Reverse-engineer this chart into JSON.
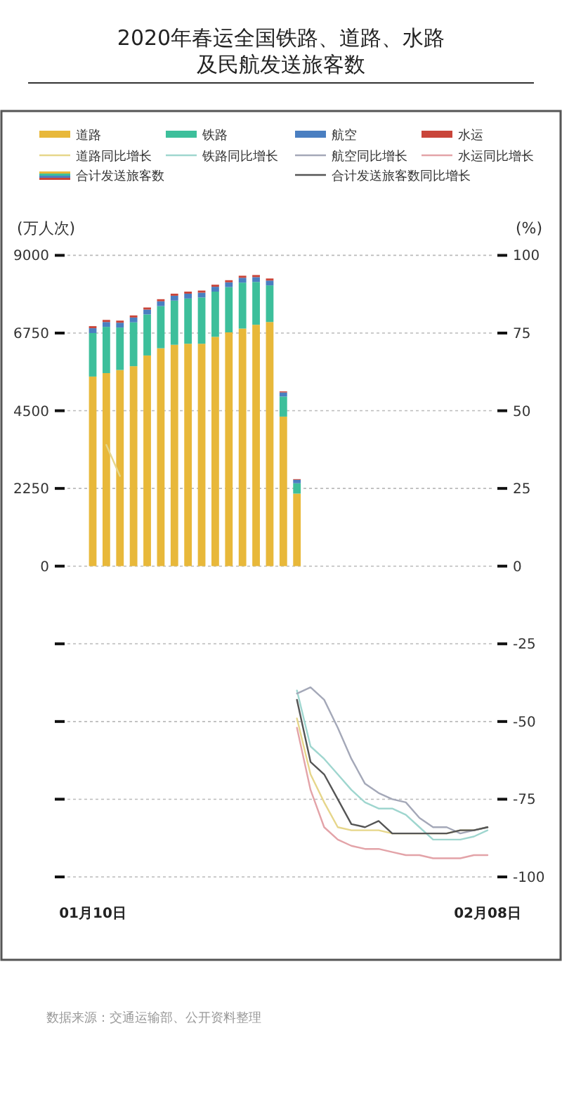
{
  "chart_data": {
    "type": "bar",
    "title": "2020年春运全国铁路、道路、水路及民航发送旅客数",
    "ylabel": "(万人次)",
    "y2label": "(%)",
    "annotations": [
      "合计发送旅客数",
      "数据来源：交通运输部、公开资料整理"
    ],
    "categories": [
      "01月10日",
      null,
      null,
      null,
      null,
      null,
      null,
      null,
      null,
      null,
      null,
      null,
      null,
      null,
      null,
      null,
      null,
      null,
      null,
      null,
      null,
      null,
      null,
      null,
      null,
      null,
      null,
      null,
      null,
      "02月08日"
    ],
    "stacked": true,
    "grid": "y",
    "legend": "top",
    "marker": "none",
    "line_style": "solid",
    "ylim": [
      -9000,
      9000
    ],
    "yticks": [
      {
        "value": -9000,
        "label": null
      },
      {
        "value": -6750,
        "label": null
      },
      {
        "value": -4500,
        "label": null
      },
      {
        "value": -2250,
        "label": null
      },
      0,
      2250,
      4500,
      6750,
      9000
    ],
    "y2lim": [
      -100,
      100
    ],
    "y2ticks": [
      -100,
      -75,
      -50,
      -25,
      0,
      25,
      50,
      75,
      100
    ],
    "series": [
      {
        "name": "道路",
        "color": "#e8b83a",
        "values": [
          5490,
          5590,
          5680,
          5790,
          6100,
          6310,
          6410,
          6440,
          6440,
          6640,
          6770,
          6880,
          6990,
          7070,
          4330,
          2100,
          null,
          null,
          null,
          null,
          null,
          null,
          null,
          null,
          null,
          null,
          null,
          null,
          null,
          null
        ]
      },
      {
        "name": "铁路",
        "color": "#3dbf9b",
        "values": [
          1260,
          1340,
          1230,
          1270,
          1190,
          1220,
          1280,
          1310,
          1340,
          1310,
          1310,
          1330,
          1240,
          1060,
          580,
          300,
          null,
          null,
          null,
          null,
          null,
          null,
          null,
          null,
          null,
          null,
          null,
          null,
          null,
          null
        ]
      },
      {
        "name": "航空",
        "color": "#4a7fc1",
        "values": [
          140,
          140,
          140,
          140,
          140,
          140,
          140,
          140,
          140,
          140,
          140,
          140,
          140,
          140,
          120,
          100,
          null,
          null,
          null,
          null,
          null,
          null,
          null,
          null,
          null,
          null,
          null,
          null,
          null,
          null
        ]
      },
      {
        "name": "水运",
        "color": "#c9453a",
        "values": [
          60,
          60,
          60,
          60,
          60,
          60,
          60,
          60,
          60,
          60,
          60,
          60,
          60,
          60,
          30,
          20,
          null,
          null,
          null,
          null,
          null,
          null,
          null,
          null,
          null,
          null,
          null,
          null,
          null,
          null
        ]
      },
      {
        "name": "道路同比增长",
        "type": "line",
        "axis": "y2",
        "color": "#e6d68a",
        "values": [
          null,
          39,
          29,
          null,
          null,
          null,
          null,
          null,
          null,
          null,
          null,
          null,
          null,
          null,
          null,
          -49,
          -67,
          -76,
          -84,
          -85,
          -85,
          -85,
          -86,
          -86,
          -86,
          -86,
          -86,
          -85,
          -85,
          -84
        ]
      },
      {
        "name": "铁路同比增长",
        "type": "line",
        "axis": "y2",
        "color": "#9fd6cf",
        "values": [
          null,
          null,
          null,
          null,
          null,
          null,
          null,
          null,
          null,
          null,
          null,
          null,
          null,
          null,
          null,
          -40,
          -58,
          -62,
          -67,
          -72,
          -76,
          -78,
          -78,
          -80,
          -84,
          -88,
          -88,
          -88,
          -87,
          -85
        ]
      },
      {
        "name": "航空同比增长",
        "type": "line",
        "axis": "y2",
        "color": "#a4a8b8",
        "values": [
          null,
          null,
          null,
          null,
          null,
          null,
          null,
          null,
          null,
          null,
          null,
          null,
          null,
          null,
          null,
          -41,
          -39,
          -43,
          -52,
          -62,
          -70,
          -73,
          -75,
          -76,
          -81,
          -84,
          -84,
          -86,
          -85,
          -84
        ]
      },
      {
        "name": "水运同比增长",
        "type": "line",
        "axis": "y2",
        "color": "#e3a3a8",
        "values": [
          null,
          null,
          null,
          null,
          null,
          null,
          null,
          null,
          null,
          null,
          null,
          null,
          null,
          null,
          null,
          -52,
          -72,
          -84,
          -88,
          -90,
          -91,
          -91,
          -92,
          -93,
          -93,
          -94,
          -94,
          -94,
          -93,
          -93
        ]
      },
      {
        "name": "合计发送旅客数同比增长",
        "type": "line",
        "axis": "y2",
        "color": "#555555",
        "values": [
          null,
          null,
          null,
          null,
          null,
          null,
          null,
          null,
          null,
          null,
          null,
          null,
          null,
          null,
          null,
          -43,
          -63,
          -67,
          -75,
          -83,
          -84,
          -82,
          -86,
          -86,
          -86,
          -86,
          -86,
          -85,
          -85,
          -84
        ]
      }
    ]
  }
}
